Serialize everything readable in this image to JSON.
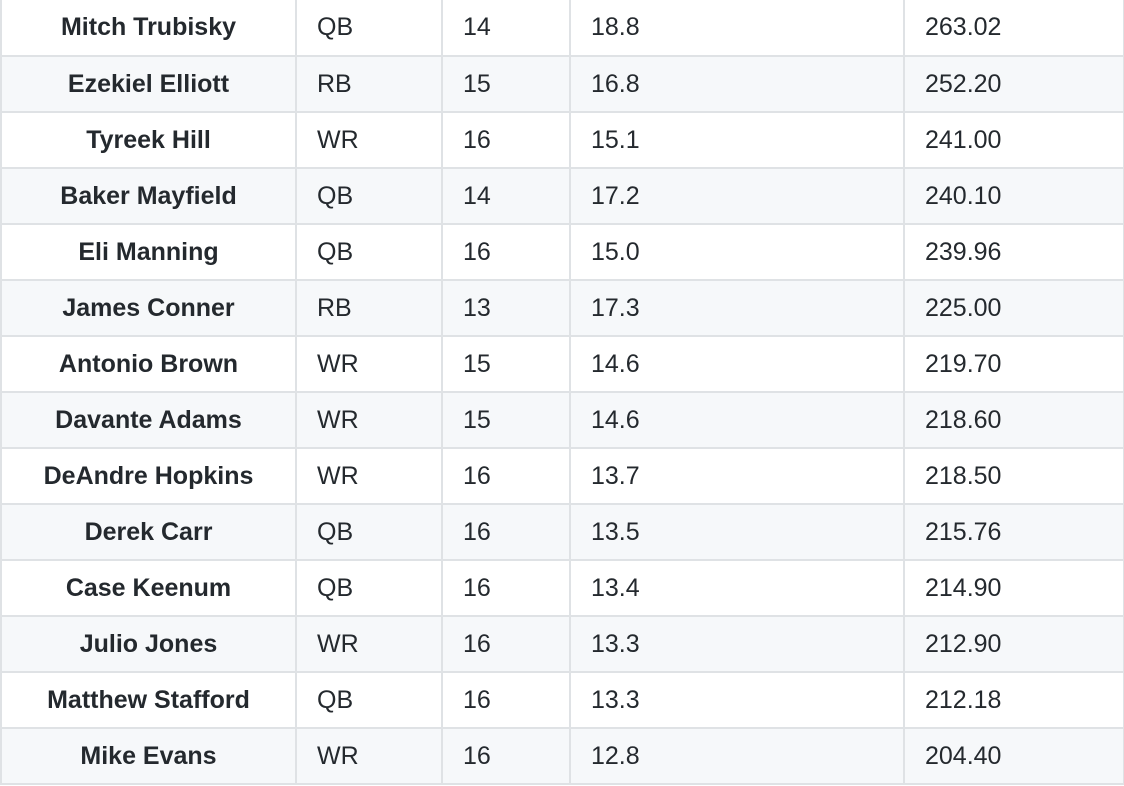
{
  "table": {
    "rows": [
      {
        "player": "Mitch Trubisky",
        "position": "QB",
        "games": "14",
        "avg": "18.8",
        "total": "263.02"
      },
      {
        "player": "Ezekiel Elliott",
        "position": "RB",
        "games": "15",
        "avg": "16.8",
        "total": "252.20"
      },
      {
        "player": "Tyreek Hill",
        "position": "WR",
        "games": "16",
        "avg": "15.1",
        "total": "241.00"
      },
      {
        "player": "Baker Mayfield",
        "position": "QB",
        "games": "14",
        "avg": "17.2",
        "total": "240.10"
      },
      {
        "player": "Eli Manning",
        "position": "QB",
        "games": "16",
        "avg": "15.0",
        "total": "239.96"
      },
      {
        "player": "James Conner",
        "position": "RB",
        "games": "13",
        "avg": "17.3",
        "total": "225.00"
      },
      {
        "player": "Antonio Brown",
        "position": "WR",
        "games": "15",
        "avg": "14.6",
        "total": "219.70"
      },
      {
        "player": "Davante Adams",
        "position": "WR",
        "games": "15",
        "avg": "14.6",
        "total": "218.60"
      },
      {
        "player": "DeAndre Hopkins",
        "position": "WR",
        "games": "16",
        "avg": "13.7",
        "total": "218.50"
      },
      {
        "player": "Derek Carr",
        "position": "QB",
        "games": "16",
        "avg": "13.5",
        "total": "215.76"
      },
      {
        "player": "Case Keenum",
        "position": "QB",
        "games": "16",
        "avg": "13.4",
        "total": "214.90"
      },
      {
        "player": "Julio Jones",
        "position": "WR",
        "games": "16",
        "avg": "13.3",
        "total": "212.90"
      },
      {
        "player": "Matthew Stafford",
        "position": "QB",
        "games": "16",
        "avg": "13.3",
        "total": "212.18"
      },
      {
        "player": "Mike Evans",
        "position": "WR",
        "games": "16",
        "avg": "12.8",
        "total": "204.40"
      }
    ]
  },
  "colors": {
    "text": "#24292e",
    "border": "#dfe2e5",
    "row_alt": "#f6f8fa",
    "row": "#ffffff"
  }
}
